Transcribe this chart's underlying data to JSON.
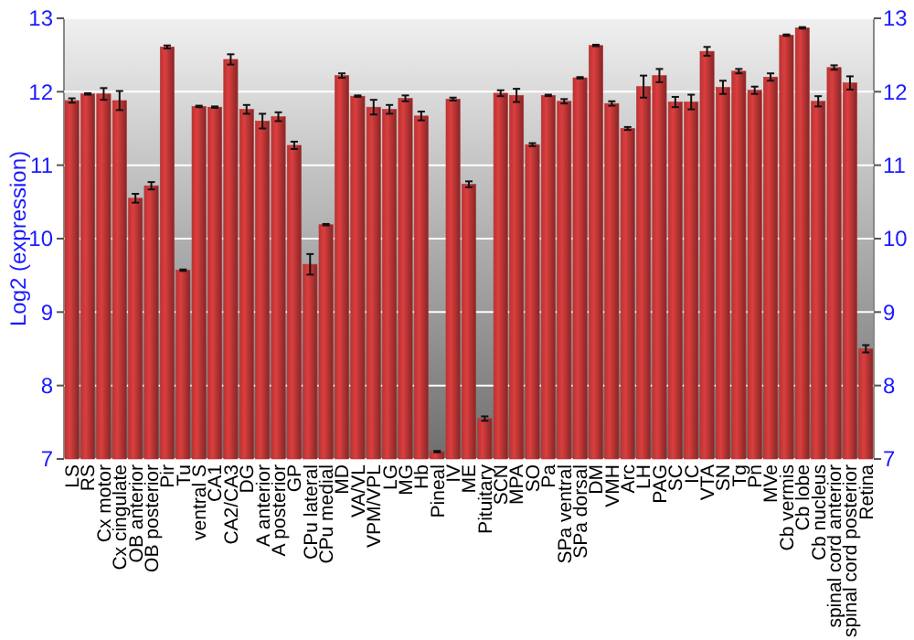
{
  "chart_data": {
    "type": "bar",
    "ylabel": "Log2 (expression)",
    "categories": [
      "LS",
      "RS",
      "Cx motor",
      "Cx cingulate",
      "OB anterior",
      "OB posterior",
      "Pir",
      "Tu",
      "ventral S",
      "CA1",
      "CA2/CA3",
      "DG",
      "A anterior",
      "A posterior",
      "GP",
      "CPu lateral",
      "CPu medial",
      "MD",
      "VA/VL",
      "VPM/VPL",
      "LG",
      "MG",
      "Hb",
      "Pineal",
      "IV",
      "ME",
      "Pituitary",
      "SCN",
      "MPA",
      "SO",
      "Pa",
      "SPa ventral",
      "SPa dorsal",
      "DM",
      "VMH",
      "Arc",
      "LH",
      "PAG",
      "SC",
      "IC",
      "VTA",
      "SN",
      "Tg",
      "Pn",
      "MVe",
      "Cb vermis",
      "Cb lobe",
      "Cb nucleus",
      "spinal cord anterior",
      "spinal cord posterior",
      "Retina"
    ],
    "values": [
      11.88,
      11.97,
      11.97,
      11.88,
      10.55,
      10.72,
      12.61,
      9.57,
      11.8,
      11.79,
      12.44,
      11.76,
      11.6,
      11.66,
      11.27,
      9.65,
      10.19,
      12.22,
      11.94,
      11.79,
      11.76,
      11.91,
      11.67,
      7.1,
      11.9,
      10.74,
      7.55,
      11.98,
      11.95,
      11.28,
      11.95,
      11.87,
      12.19,
      12.63,
      11.84,
      11.5,
      12.07,
      12.22,
      11.86,
      11.86,
      12.55,
      12.06,
      12.28,
      12.02,
      12.2,
      12.77,
      12.87,
      11.87,
      12.33,
      12.12,
      8.5
    ],
    "errors": [
      0.03,
      0.01,
      0.08,
      0.13,
      0.06,
      0.05,
      0.02,
      0.01,
      0.01,
      0.01,
      0.07,
      0.06,
      0.1,
      0.06,
      0.05,
      0.14,
      0.01,
      0.03,
      0.01,
      0.1,
      0.06,
      0.04,
      0.06,
      0.01,
      0.02,
      0.04,
      0.03,
      0.04,
      0.09,
      0.02,
      0.01,
      0.03,
      0.01,
      0.01,
      0.03,
      0.02,
      0.15,
      0.09,
      0.07,
      0.1,
      0.06,
      0.09,
      0.03,
      0.05,
      0.05,
      0.01,
      0.01,
      0.07,
      0.03,
      0.09,
      0.05
    ],
    "color": "#b83434",
    "ylim": [
      7,
      13
    ],
    "yticks": [
      7,
      8,
      9,
      10,
      11,
      12,
      13
    ],
    "y2lim": [
      7,
      13
    ],
    "y2ticks": [
      7,
      8,
      9,
      10,
      11,
      12,
      13
    ],
    "grid": "y"
  }
}
